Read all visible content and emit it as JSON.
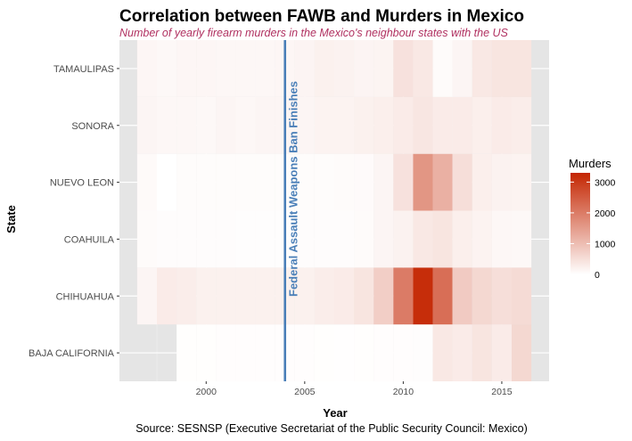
{
  "chart_data": {
    "type": "heatmap",
    "title": "Correlation between FAWB and Murders in Mexico",
    "subtitle": "Number of yearly firearm murders in the Mexico's neighbour states with the US",
    "xlabel": "Year",
    "ylabel": "State",
    "caption": "Source: SESNSP (Executive Secretariat of the Public Security Council: Mexico)",
    "xlim": [
      1995.6,
      2017.4
    ],
    "x_ticks": [
      "2000",
      "2005",
      "2010",
      "2015"
    ],
    "years": [
      1997,
      1998,
      1999,
      2000,
      2001,
      2002,
      2003,
      2004,
      2005,
      2006,
      2007,
      2008,
      2009,
      2010,
      2011,
      2012,
      2013,
      2014,
      2015,
      2016
    ],
    "states": [
      "BAJA CALIFORNIA",
      "CHIHUAHUA",
      "COAHUILA",
      "NUEVO LEON",
      "SONORA",
      "TAMAULIPAS"
    ],
    "values": [
      [
        null,
        null,
        20,
        20,
        25,
        25,
        25,
        25,
        25,
        20,
        15,
        20,
        25,
        25,
        30,
        350,
        300,
        400,
        300,
        600
      ],
      [
        150,
        300,
        280,
        220,
        220,
        220,
        220,
        220,
        220,
        280,
        300,
        400,
        750,
        2000,
        3200,
        2200,
        800,
        600,
        500,
        550
      ],
      [
        60,
        40,
        40,
        40,
        40,
        30,
        30,
        30,
        40,
        40,
        40,
        60,
        150,
        200,
        350,
        400,
        250,
        180,
        120,
        100
      ],
      [
        80,
        5,
        50,
        50,
        50,
        50,
        50,
        50,
        50,
        50,
        60,
        70,
        150,
        450,
        1600,
        1200,
        500,
        250,
        200,
        180
      ],
      [
        150,
        120,
        120,
        100,
        150,
        120,
        150,
        150,
        150,
        180,
        180,
        220,
        250,
        300,
        380,
        300,
        300,
        250,
        300,
        280
      ],
      [
        130,
        100,
        130,
        130,
        120,
        120,
        120,
        130,
        160,
        220,
        200,
        160,
        170,
        450,
        350,
        60,
        150,
        350,
        400,
        400
      ]
    ],
    "legend": {
      "title": "Murders",
      "ticks": [
        "0",
        "1000",
        "2000",
        "3000"
      ],
      "tick_values": [
        0,
        1000,
        2000,
        3000
      ],
      "max": 3300,
      "low_color": "#ffffff",
      "high_color": "#c42602"
    },
    "annotation": {
      "label": "Federal Assault Weapons Ban Finishes",
      "x": 2004,
      "color": "#4a7fb8"
    },
    "panel_background": "#e5e5e5",
    "grid": true
  }
}
